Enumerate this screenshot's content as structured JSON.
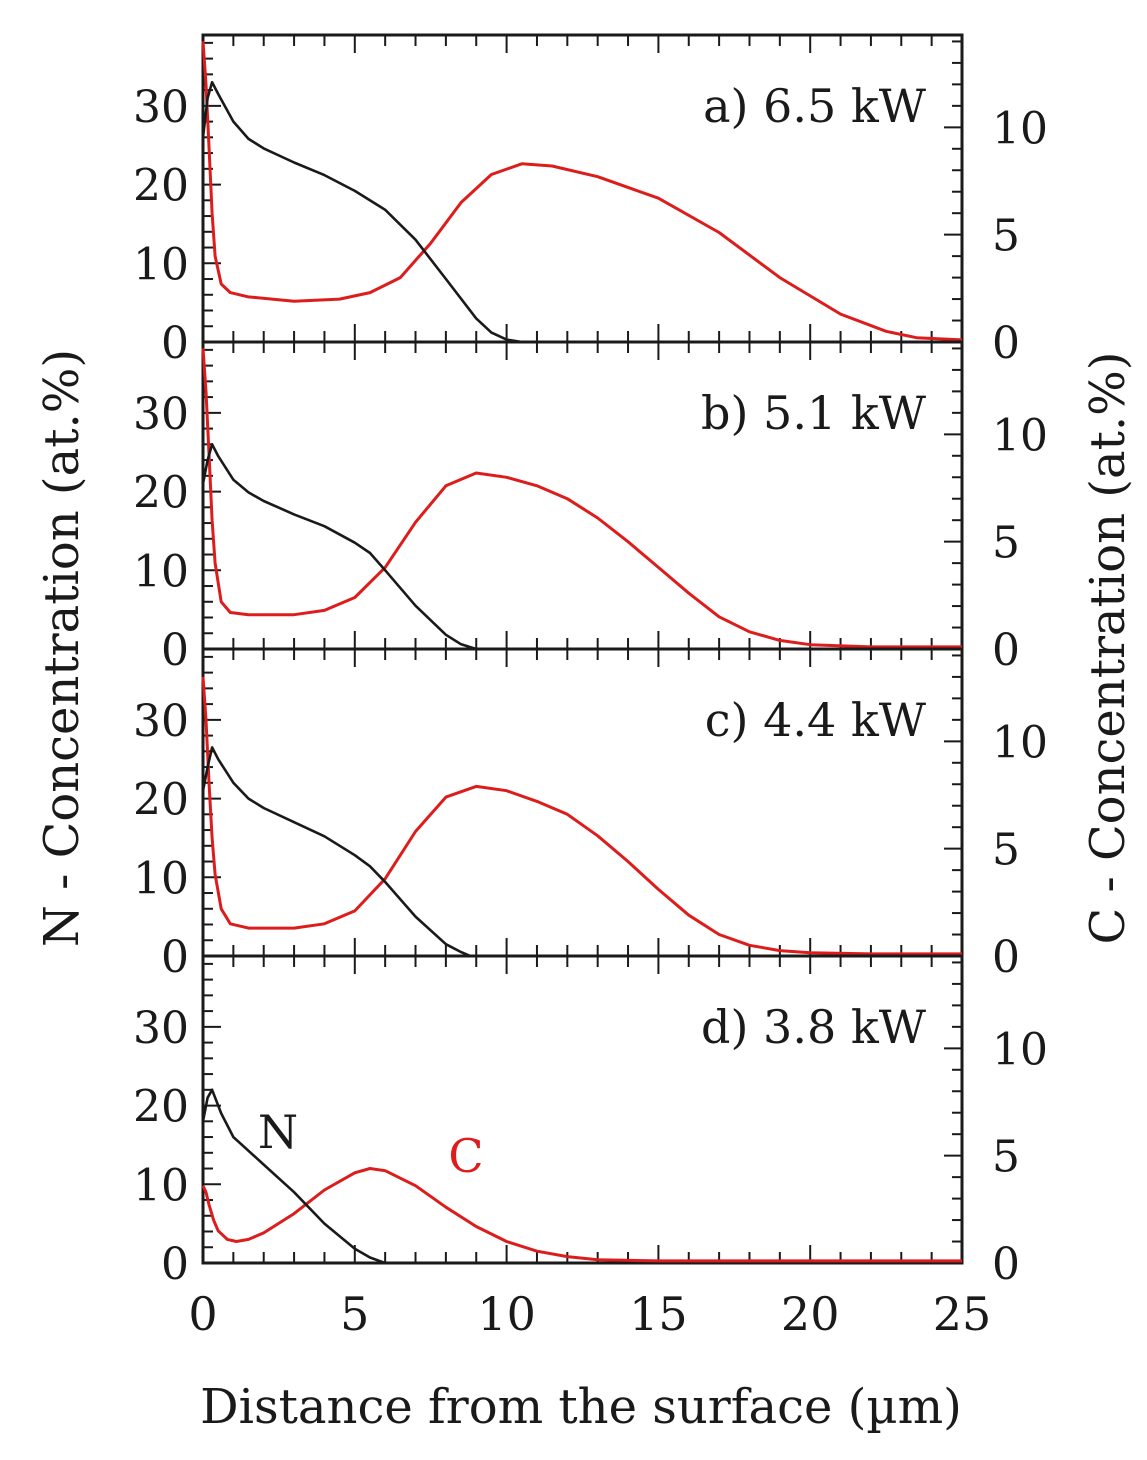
{
  "chart_data": {
    "type": "line",
    "xlabel": "Distance from the surface (µm)",
    "ylabel_left": "N - Concentration (at.%)",
    "ylabel_right": "C - Concentration (at.%)",
    "xlim": [
      0,
      25
    ],
    "x_ticks": [
      0,
      5,
      10,
      15,
      20,
      25
    ],
    "ylim_left": [
      0,
      39
    ],
    "ylim_right": [
      0,
      14.3
    ],
    "y_ticks_left": [
      0,
      10,
      20,
      30
    ],
    "y_ticks_right": [
      0,
      5,
      10
    ],
    "colors": {
      "N": "#1a1a1a",
      "C": "#dd1c1c"
    },
    "series_labels": {
      "N": "N",
      "C": "C"
    },
    "panels": [
      {
        "label": "a) 6.5 kW",
        "N": [
          [
            0,
            26
          ],
          [
            0.15,
            31
          ],
          [
            0.3,
            33
          ],
          [
            0.5,
            31.5
          ],
          [
            1,
            28
          ],
          [
            1.5,
            25.8
          ],
          [
            2,
            24.6
          ],
          [
            3,
            22.8
          ],
          [
            4,
            21.2
          ],
          [
            5,
            19.2
          ],
          [
            6,
            16.8
          ],
          [
            7,
            13
          ],
          [
            8,
            8
          ],
          [
            9,
            3
          ],
          [
            9.5,
            1.2
          ],
          [
            10,
            0.3
          ],
          [
            10.5,
            0
          ]
        ],
        "C": [
          [
            0,
            14
          ],
          [
            0.1,
            12
          ],
          [
            0.2,
            9
          ],
          [
            0.3,
            6
          ],
          [
            0.4,
            4
          ],
          [
            0.6,
            2.7
          ],
          [
            0.9,
            2.3
          ],
          [
            1.5,
            2.1
          ],
          [
            3,
            1.9
          ],
          [
            4.5,
            2
          ],
          [
            5.5,
            2.3
          ],
          [
            6.5,
            3
          ],
          [
            7.5,
            4.6
          ],
          [
            8.5,
            6.5
          ],
          [
            9.5,
            7.8
          ],
          [
            10.5,
            8.3
          ],
          [
            11.5,
            8.2
          ],
          [
            13,
            7.7
          ],
          [
            15,
            6.7
          ],
          [
            17,
            5.1
          ],
          [
            19,
            3
          ],
          [
            21,
            1.3
          ],
          [
            22.5,
            0.5
          ],
          [
            23.5,
            0.2
          ],
          [
            25,
            0.1
          ]
        ]
      },
      {
        "label": "b) 5.1 kW",
        "N": [
          [
            0,
            21
          ],
          [
            0.15,
            24
          ],
          [
            0.3,
            26
          ],
          [
            0.5,
            24.5
          ],
          [
            1,
            21.5
          ],
          [
            1.5,
            19.9
          ],
          [
            2,
            18.8
          ],
          [
            3,
            17.1
          ],
          [
            4,
            15.6
          ],
          [
            5,
            13.5
          ],
          [
            5.5,
            12.2
          ],
          [
            6,
            10
          ],
          [
            7,
            5.5
          ],
          [
            8,
            1.8
          ],
          [
            8.5,
            0.6
          ],
          [
            9,
            0
          ]
        ],
        "C": [
          [
            0,
            14
          ],
          [
            0.1,
            12
          ],
          [
            0.2,
            9
          ],
          [
            0.3,
            6
          ],
          [
            0.4,
            4
          ],
          [
            0.6,
            2.2
          ],
          [
            0.9,
            1.7
          ],
          [
            1.5,
            1.6
          ],
          [
            3,
            1.6
          ],
          [
            4,
            1.8
          ],
          [
            5,
            2.4
          ],
          [
            6,
            3.8
          ],
          [
            7,
            5.9
          ],
          [
            8,
            7.6
          ],
          [
            9,
            8.2
          ],
          [
            10,
            8
          ],
          [
            11,
            7.6
          ],
          [
            12,
            7
          ],
          [
            13,
            6.1
          ],
          [
            14,
            5
          ],
          [
            15,
            3.8
          ],
          [
            16,
            2.6
          ],
          [
            17,
            1.5
          ],
          [
            18,
            0.8
          ],
          [
            19,
            0.4
          ],
          [
            20,
            0.2
          ],
          [
            22,
            0.1
          ],
          [
            25,
            0.1
          ]
        ]
      },
      {
        "label": "c) 4.4 kW",
        "N": [
          [
            0,
            21
          ],
          [
            0.15,
            24
          ],
          [
            0.3,
            26.5
          ],
          [
            0.5,
            25
          ],
          [
            1,
            22
          ],
          [
            1.5,
            20
          ],
          [
            2,
            18.8
          ],
          [
            3,
            17
          ],
          [
            4,
            15.2
          ],
          [
            5,
            12.8
          ],
          [
            5.5,
            11.4
          ],
          [
            6,
            9.4
          ],
          [
            7,
            5
          ],
          [
            8,
            1.5
          ],
          [
            8.5,
            0.5
          ],
          [
            8.8,
            0
          ]
        ],
        "C": [
          [
            0,
            13
          ],
          [
            0.1,
            11
          ],
          [
            0.2,
            8
          ],
          [
            0.3,
            5.5
          ],
          [
            0.4,
            3.8
          ],
          [
            0.6,
            2.2
          ],
          [
            0.9,
            1.5
          ],
          [
            1.5,
            1.3
          ],
          [
            3,
            1.3
          ],
          [
            4,
            1.5
          ],
          [
            5,
            2.1
          ],
          [
            6,
            3.6
          ],
          [
            7,
            5.8
          ],
          [
            8,
            7.4
          ],
          [
            9,
            7.9
          ],
          [
            10,
            7.7
          ],
          [
            11,
            7.2
          ],
          [
            12,
            6.6
          ],
          [
            13,
            5.6
          ],
          [
            14,
            4.4
          ],
          [
            15,
            3.1
          ],
          [
            16,
            1.9
          ],
          [
            17,
            1
          ],
          [
            18,
            0.5
          ],
          [
            19,
            0.25
          ],
          [
            20,
            0.15
          ],
          [
            22,
            0.1
          ],
          [
            25,
            0.1
          ]
        ]
      },
      {
        "label": "d) 3.8 kW",
        "N": [
          [
            0,
            18
          ],
          [
            0.15,
            21
          ],
          [
            0.3,
            22
          ],
          [
            0.6,
            19
          ],
          [
            1,
            16
          ],
          [
            2,
            12.5
          ],
          [
            3,
            9
          ],
          [
            4,
            5
          ],
          [
            5,
            1.8
          ],
          [
            5.5,
            0.7
          ],
          [
            6,
            0
          ]
        ],
        "C": [
          [
            0,
            3.6
          ],
          [
            0.1,
            3.3
          ],
          [
            0.2,
            2.7
          ],
          [
            0.35,
            2
          ],
          [
            0.5,
            1.5
          ],
          [
            0.8,
            1.1
          ],
          [
            1.1,
            1
          ],
          [
            1.5,
            1.1
          ],
          [
            2,
            1.4
          ],
          [
            3,
            2.3
          ],
          [
            4,
            3.4
          ],
          [
            5,
            4.2
          ],
          [
            5.5,
            4.4
          ],
          [
            6,
            4.3
          ],
          [
            7,
            3.6
          ],
          [
            8,
            2.6
          ],
          [
            9,
            1.7
          ],
          [
            10,
            1
          ],
          [
            11,
            0.55
          ],
          [
            12,
            0.3
          ],
          [
            13,
            0.15
          ],
          [
            15,
            0.1
          ],
          [
            25,
            0.1
          ]
        ]
      }
    ]
  }
}
